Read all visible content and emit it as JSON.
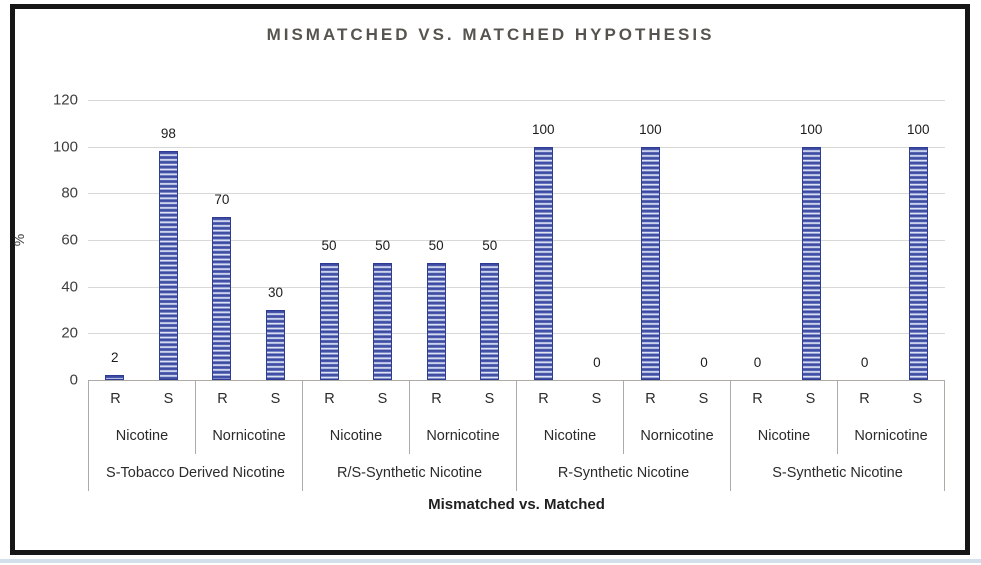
{
  "chart_data": {
    "type": "bar",
    "title": "MISMATCHED VS. MATCHED HYPOTHESIS",
    "xlabel": "Mismatched vs. Matched",
    "ylabel": "%",
    "ylim": [
      0,
      120
    ],
    "yticks": [
      0,
      20,
      40,
      60,
      80,
      100,
      120
    ],
    "grid": true,
    "legend": "none",
    "bar_fill_color": "#36449c",
    "bar_stripe_color": "#f2f4fb",
    "bar_border_color": "#2f3c94",
    "gridline_color": "#d8d8d8",
    "axis_table_border_color": "#aeaba7",
    "title_color": "#57544f",
    "frame_border_color": "#161616",
    "bottom_strip_color": "#d3e0eb",
    "groups": [
      {
        "label": "S-Tobacco Derived Nicotine",
        "subgroups": [
          {
            "label": "Nicotine",
            "bars": [
              {
                "label": "R",
                "value": 2
              },
              {
                "label": "S",
                "value": 98
              }
            ]
          },
          {
            "label": "Nornicotine",
            "bars": [
              {
                "label": "R",
                "value": 70
              },
              {
                "label": "S",
                "value": 30
              }
            ]
          }
        ]
      },
      {
        "label": "R/S-Synthetic Nicotine",
        "subgroups": [
          {
            "label": "Nicotine",
            "bars": [
              {
                "label": "R",
                "value": 50
              },
              {
                "label": "S",
                "value": 50
              }
            ]
          },
          {
            "label": "Nornicotine",
            "bars": [
              {
                "label": "R",
                "value": 50
              },
              {
                "label": "S",
                "value": 50
              }
            ]
          }
        ]
      },
      {
        "label": "R-Synthetic Nicotine",
        "subgroups": [
          {
            "label": "Nicotine",
            "bars": [
              {
                "label": "R",
                "value": 100
              },
              {
                "label": "S",
                "value": 0
              }
            ]
          },
          {
            "label": "Nornicotine",
            "bars": [
              {
                "label": "R",
                "value": 100
              },
              {
                "label": "S",
                "value": 0
              }
            ]
          }
        ]
      },
      {
        "label": "S-Synthetic Nicotine",
        "subgroups": [
          {
            "label": "Nicotine",
            "bars": [
              {
                "label": "R",
                "value": 0
              },
              {
                "label": "S",
                "value": 100
              }
            ]
          },
          {
            "label": "Nornicotine",
            "bars": [
              {
                "label": "R",
                "value": 0
              },
              {
                "label": "S",
                "value": 100
              }
            ]
          }
        ]
      }
    ]
  }
}
